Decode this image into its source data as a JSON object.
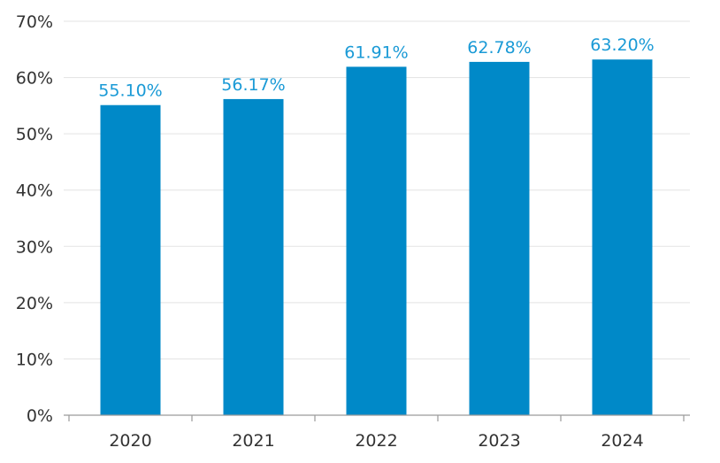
{
  "chart_data": {
    "type": "bar",
    "title": "",
    "xlabel": "",
    "ylabel": "",
    "categories": [
      "2020",
      "2021",
      "2022",
      "2023",
      "2024"
    ],
    "values": [
      55.1,
      56.17,
      61.91,
      62.78,
      63.2
    ],
    "value_labels": [
      "55.10%",
      "56.17%",
      "61.91%",
      "62.78%",
      "63.20%"
    ],
    "ylim": [
      0,
      70
    ],
    "yticks": [
      0,
      10,
      20,
      30,
      40,
      50,
      60,
      70
    ],
    "ytick_labels": [
      "0%",
      "10%",
      "20%",
      "30%",
      "40%",
      "50%",
      "60%",
      "70%"
    ],
    "grid": true,
    "legend": "none",
    "colors": {
      "bar": "#0089c8",
      "data_label": "#1a9ad6"
    }
  }
}
